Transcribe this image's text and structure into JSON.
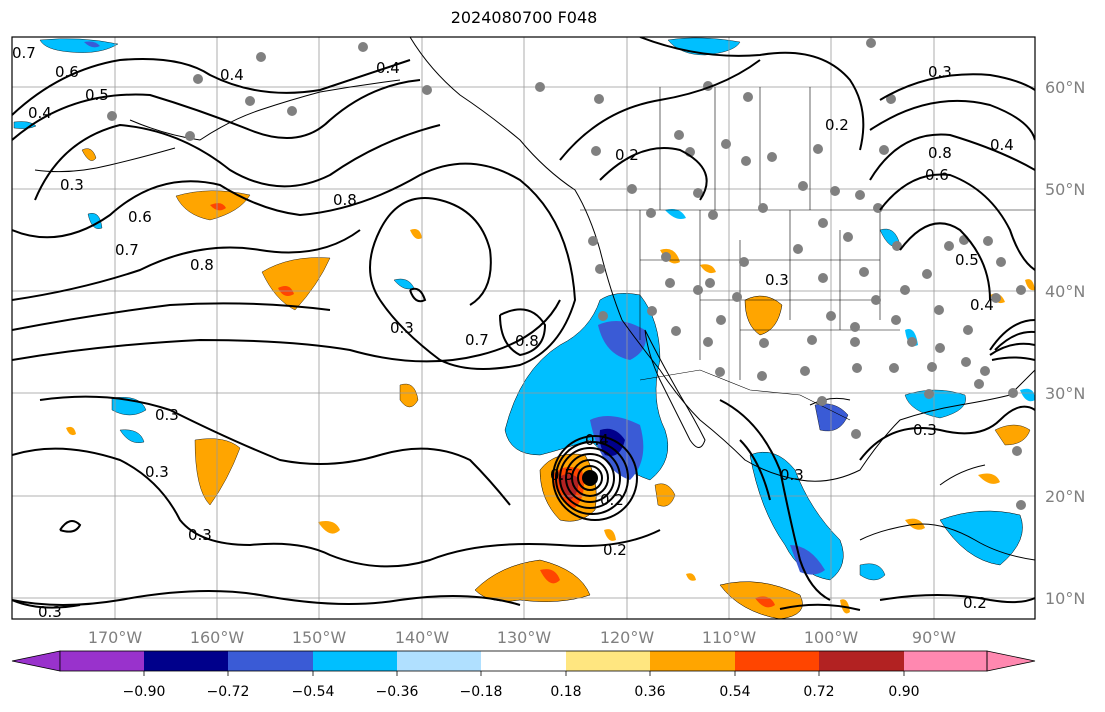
{
  "title": "2024080700 F048",
  "map": {
    "lon_ticks": [
      "170°W",
      "160°W",
      "150°W",
      "140°W",
      "130°W",
      "120°W",
      "110°W",
      "100°W",
      "90°W"
    ],
    "lat_ticks": [
      "60°N",
      "50°N",
      "40°N",
      "30°N",
      "20°N",
      "10°N"
    ],
    "contour_labels": [
      "0.7",
      "0.6",
      "0.5",
      "0.4",
      "0.3",
      "0.6",
      "0.7",
      "0.8",
      "0.8",
      "0.4",
      "0.3",
      "0.7",
      "0.8",
      "0.3",
      "0.3",
      "0.3",
      "0.3",
      "0.2",
      "0.4",
      "0.5",
      "0.2",
      "0.3",
      "0.3",
      "0.2",
      "0.3",
      "0.8",
      "0.6",
      "0.4",
      "0.5",
      "0.4",
      "0.3",
      "0.2",
      "0.4",
      "0.2"
    ],
    "colors": {
      "coast": "#000000",
      "grid": "#999999",
      "station": "#808080",
      "storm_center": "#000000"
    }
  },
  "colorbar": {
    "tick_labels": [
      "−0.90",
      "−0.72",
      "−0.54",
      "−0.36",
      "−0.18",
      "0.18",
      "0.36",
      "0.54",
      "0.72",
      "0.90"
    ],
    "colors": [
      "#9932cc",
      "#00008b",
      "#3a5bd6",
      "#00bfff",
      "#b0e0ff",
      "#ffffff",
      "#ffe680",
      "#ffa500",
      "#ff4500",
      "#b22222",
      "#ff88b0"
    ]
  }
}
